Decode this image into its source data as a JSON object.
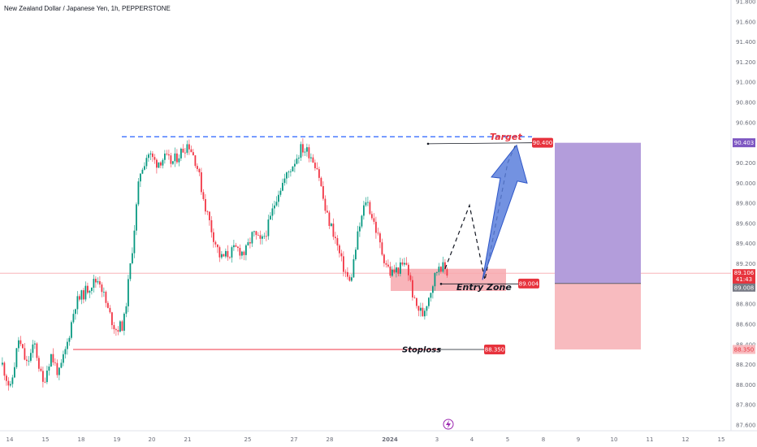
{
  "header": {
    "title": "New Zealand Dollar / Japanese Yen, 1h, PEPPERSTONE"
  },
  "chart_data": {
    "type": "candlestick",
    "symbol": "NZDJPY",
    "timeframe": "1h",
    "ylim": [
      87.6,
      91.8
    ],
    "y_ticks": [
      "91.800",
      "91.600",
      "91.400",
      "91.200",
      "91.000",
      "90.800",
      "90.600",
      "90.400",
      "90.200",
      "90.000",
      "89.800",
      "89.600",
      "89.400",
      "89.200",
      "89.000",
      "88.800",
      "88.600",
      "88.400",
      "88.200",
      "88.000",
      "87.800",
      "87.600"
    ],
    "x_ticks": [
      "14",
      "15",
      "18",
      "19",
      "20",
      "21",
      "25",
      "27",
      "28",
      "2024",
      "3",
      "4",
      "5",
      "8",
      "9",
      "10",
      "11",
      "12",
      "15"
    ],
    "price_path": [
      88.2,
      87.95,
      88.45,
      88.2,
      88.4,
      88.0,
      88.3,
      88.1,
      88.4,
      88.8,
      88.9,
      89.0,
      89.05,
      88.75,
      88.55,
      88.6,
      89.3,
      90.1,
      90.3,
      90.2,
      90.25,
      90.2,
      90.3,
      90.4,
      90.2,
      89.8,
      89.5,
      89.25,
      89.3,
      89.35,
      89.3,
      89.5,
      89.4,
      89.6,
      89.9,
      90.05,
      90.2,
      90.35,
      90.3,
      90.15,
      89.7,
      89.5,
      89.2,
      89.0,
      89.5,
      89.85,
      89.6,
      89.3,
      89.1,
      89.15,
      89.2,
      88.8,
      88.7,
      88.95,
      89.2,
      89.12
    ],
    "annotations": {
      "target_label": "Target",
      "target_price": 90.4,
      "target_badge": "90.400",
      "entry_label": "Entry Zone",
      "entry_price": 89.004,
      "entry_badge": "89.004",
      "stoploss_label": "Stoploss",
      "stop_price": 88.35,
      "stop_badge": "88.350"
    },
    "price_labels": {
      "target": "90.403",
      "current": "89.106",
      "countdown": "41:43",
      "entry": "89.008",
      "stop": "88.350"
    }
  },
  "footer": {
    "lightning_icon": "lightning-icon"
  },
  "colors": {
    "up": "#089981",
    "down": "#f23645",
    "target_line": "#2962ff",
    "profit_zone": "#b39ddb",
    "loss_zone": "#f8bbbf",
    "entry_zone": "#f7a8ae",
    "badge": "#e7333d",
    "arrow": "#5b7fdc",
    "axis_text": "#6a6d78"
  }
}
